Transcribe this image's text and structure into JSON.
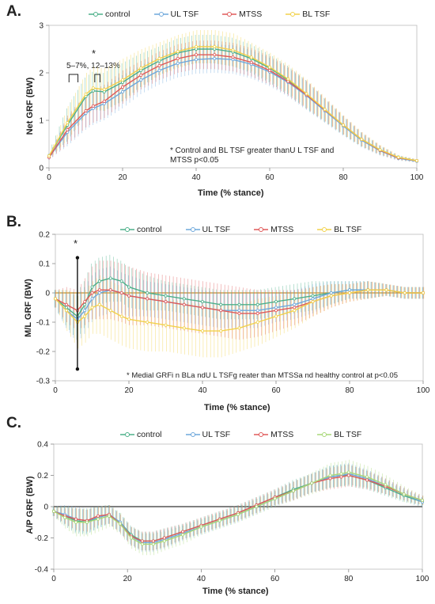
{
  "panels": [
    {
      "letter": "A.",
      "legend": [
        {
          "name": "control",
          "color": "#4db08a"
        },
        {
          "name": "UL TSF",
          "color": "#6fa8dc"
        },
        {
          "name": "MTSS",
          "color": "#e05a5a"
        },
        {
          "name": "BL TSF",
          "color": "#f2d24b"
        }
      ],
      "ylabel": "Net GRF (BW)",
      "xlabel": "Time (% stance)",
      "annotation": "* Control and BL TSF greater thanU L TSF and MTSS p<0.05",
      "marker_star": "*",
      "marker_label": "5–7%, 12–13%"
    },
    {
      "letter": "B.",
      "legend": [
        {
          "name": "control",
          "color": "#4db08a"
        },
        {
          "name": "UL TSF",
          "color": "#6fa8dc"
        },
        {
          "name": "MTSS",
          "color": "#e05a5a"
        },
        {
          "name": "BL TSF",
          "color": "#f2d24b"
        }
      ],
      "ylabel": "M/L GRF (BW)",
      "xlabel": "Time (% stance)",
      "annotation": "* Medial GRFi n BLa ndU L TSFg reater than MTSSa nd healthy control at p<0.05",
      "marker_star": "*"
    },
    {
      "letter": "C.",
      "legend": [
        {
          "name": "control",
          "color": "#4db08a"
        },
        {
          "name": "UL TSF",
          "color": "#6fa8dc"
        },
        {
          "name": "MTSS",
          "color": "#e05a5a"
        },
        {
          "name": "BL TSF",
          "color": "#a8d878"
        }
      ],
      "ylabel": "A/P GRF (BW)",
      "xlabel": "Time (% stance)"
    }
  ],
  "chart_data": [
    {
      "type": "line",
      "title": "",
      "xlabel": "Time (% stance)",
      "ylabel": "Net GRF (BW)",
      "xlim": [
        0,
        100
      ],
      "ylim": [
        0,
        3
      ],
      "xticks": [
        0,
        20,
        40,
        60,
        80,
        100
      ],
      "yticks": [
        0,
        1,
        2,
        3
      ],
      "x": [
        0,
        5,
        10,
        12,
        15,
        20,
        25,
        30,
        35,
        40,
        45,
        50,
        55,
        60,
        65,
        70,
        75,
        80,
        85,
        90,
        95,
        100
      ],
      "series": [
        {
          "name": "control",
          "color": "#4db08a",
          "values": [
            0.25,
            0.9,
            1.5,
            1.62,
            1.6,
            1.8,
            2.05,
            2.25,
            2.42,
            2.5,
            2.5,
            2.44,
            2.3,
            2.1,
            1.85,
            1.55,
            1.22,
            0.9,
            0.6,
            0.38,
            0.22,
            0.15
          ],
          "sd": [
            0.05,
            0.35,
            0.4,
            0.4,
            0.4,
            0.4,
            0.35,
            0.3,
            0.3,
            0.3,
            0.3,
            0.3,
            0.3,
            0.3,
            0.3,
            0.3,
            0.25,
            0.2,
            0.15,
            0.1,
            0.05,
            0.03
          ]
        },
        {
          "name": "UL TSF",
          "color": "#6fa8dc",
          "values": [
            0.22,
            0.75,
            1.15,
            1.25,
            1.35,
            1.6,
            1.85,
            2.05,
            2.2,
            2.28,
            2.3,
            2.28,
            2.18,
            2.02,
            1.8,
            1.52,
            1.2,
            0.88,
            0.58,
            0.36,
            0.2,
            0.14
          ],
          "sd": [
            0.05,
            0.3,
            0.35,
            0.35,
            0.35,
            0.35,
            0.3,
            0.3,
            0.3,
            0.3,
            0.3,
            0.3,
            0.3,
            0.3,
            0.3,
            0.3,
            0.25,
            0.2,
            0.15,
            0.1,
            0.05,
            0.03
          ]
        },
        {
          "name": "MTSS",
          "color": "#e05a5a",
          "values": [
            0.22,
            0.8,
            1.2,
            1.3,
            1.4,
            1.7,
            1.95,
            2.15,
            2.3,
            2.38,
            2.38,
            2.33,
            2.22,
            2.05,
            1.82,
            1.54,
            1.22,
            0.9,
            0.6,
            0.37,
            0.21,
            0.15
          ],
          "sd": [
            0.05,
            0.3,
            0.35,
            0.35,
            0.35,
            0.35,
            0.3,
            0.3,
            0.3,
            0.3,
            0.3,
            0.3,
            0.3,
            0.3,
            0.3,
            0.3,
            0.25,
            0.2,
            0.15,
            0.1,
            0.05,
            0.03
          ]
        },
        {
          "name": "BL TSF",
          "color": "#f2d24b",
          "values": [
            0.25,
            0.95,
            1.55,
            1.68,
            1.65,
            1.85,
            2.1,
            2.3,
            2.45,
            2.55,
            2.55,
            2.48,
            2.33,
            2.12,
            1.87,
            1.56,
            1.23,
            0.9,
            0.6,
            0.38,
            0.22,
            0.15
          ],
          "sd": [
            0.05,
            0.35,
            0.45,
            0.45,
            0.45,
            0.45,
            0.4,
            0.35,
            0.35,
            0.35,
            0.35,
            0.35,
            0.3,
            0.3,
            0.3,
            0.3,
            0.25,
            0.2,
            0.15,
            0.1,
            0.05,
            0.03
          ]
        }
      ]
    },
    {
      "type": "line",
      "title": "",
      "xlabel": "Time (% stance)",
      "ylabel": "M/L GRF (BW)",
      "xlim": [
        0,
        100
      ],
      "ylim": [
        -0.3,
        0.2
      ],
      "xticks": [
        0,
        20,
        40,
        60,
        80,
        100
      ],
      "yticks": [
        -0.3,
        -0.2,
        -0.1,
        0,
        0.1,
        0.2
      ],
      "annotation_bar": {
        "x": 6,
        "y_low": -0.26,
        "y_high": 0.12
      },
      "x": [
        0,
        3,
        6,
        8,
        10,
        12,
        15,
        18,
        20,
        25,
        30,
        35,
        40,
        45,
        50,
        55,
        60,
        65,
        70,
        75,
        80,
        85,
        90,
        95,
        100
      ],
      "series": [
        {
          "name": "control",
          "color": "#4db08a",
          "values": [
            -0.02,
            -0.05,
            -0.08,
            -0.04,
            0.02,
            0.04,
            0.05,
            0.04,
            0.02,
            0.0,
            -0.01,
            -0.02,
            -0.03,
            -0.04,
            -0.04,
            -0.04,
            -0.03,
            -0.02,
            -0.01,
            0.0,
            0.01,
            0.01,
            0.01,
            0.0,
            0.0
          ],
          "sd": [
            0.03,
            0.06,
            0.08,
            0.08,
            0.08,
            0.08,
            0.08,
            0.07,
            0.07,
            0.06,
            0.05,
            0.05,
            0.05,
            0.05,
            0.05,
            0.05,
            0.05,
            0.05,
            0.05,
            0.04,
            0.03,
            0.03,
            0.02,
            0.02,
            0.02
          ]
        },
        {
          "name": "UL TSF",
          "color": "#6fa8dc",
          "values": [
            -0.02,
            -0.06,
            -0.09,
            -0.06,
            -0.02,
            0.0,
            0.01,
            0.0,
            -0.01,
            -0.02,
            -0.03,
            -0.04,
            -0.05,
            -0.06,
            -0.06,
            -0.06,
            -0.05,
            -0.04,
            -0.02,
            0.0,
            0.01,
            0.01,
            0.01,
            0.0,
            0.0
          ],
          "sd": [
            0.03,
            0.06,
            0.08,
            0.08,
            0.08,
            0.08,
            0.08,
            0.07,
            0.07,
            0.06,
            0.06,
            0.06,
            0.06,
            0.06,
            0.06,
            0.06,
            0.05,
            0.05,
            0.05,
            0.04,
            0.03,
            0.03,
            0.02,
            0.02,
            0.02
          ]
        },
        {
          "name": "MTSS",
          "color": "#e05a5a",
          "values": [
            -0.02,
            -0.04,
            -0.06,
            -0.03,
            0.0,
            0.01,
            0.01,
            0.0,
            -0.01,
            -0.02,
            -0.03,
            -0.04,
            -0.05,
            -0.06,
            -0.07,
            -0.07,
            -0.06,
            -0.05,
            -0.03,
            -0.01,
            0.0,
            0.01,
            0.01,
            0.0,
            0.0
          ],
          "sd": [
            0.03,
            0.06,
            0.07,
            0.08,
            0.09,
            0.1,
            0.1,
            0.1,
            0.1,
            0.09,
            0.09,
            0.09,
            0.09,
            0.09,
            0.09,
            0.08,
            0.07,
            0.06,
            0.05,
            0.04,
            0.03,
            0.03,
            0.02,
            0.02,
            0.02
          ]
        },
        {
          "name": "BL TSF",
          "color": "#f2d24b",
          "values": [
            -0.02,
            -0.06,
            -0.1,
            -0.08,
            -0.05,
            -0.04,
            -0.06,
            -0.08,
            -0.09,
            -0.1,
            -0.11,
            -0.12,
            -0.13,
            -0.13,
            -0.12,
            -0.1,
            -0.08,
            -0.06,
            -0.03,
            -0.01,
            0.0,
            0.01,
            0.01,
            0.0,
            0.0
          ],
          "sd": [
            0.03,
            0.07,
            0.09,
            0.09,
            0.09,
            0.1,
            0.1,
            0.1,
            0.1,
            0.1,
            0.09,
            0.09,
            0.09,
            0.09,
            0.08,
            0.08,
            0.07,
            0.06,
            0.05,
            0.04,
            0.03,
            0.03,
            0.02,
            0.02,
            0.02
          ]
        }
      ]
    },
    {
      "type": "line",
      "title": "",
      "xlabel": "Time (% stance)",
      "ylabel": "A/P GRF (BW)",
      "xlim": [
        0,
        100
      ],
      "ylim": [
        -0.4,
        0.4
      ],
      "xticks": [
        0,
        20,
        40,
        60,
        80,
        100
      ],
      "yticks": [
        -0.4,
        -0.2,
        0,
        0.2,
        0.4
      ],
      "x": [
        0,
        3,
        6,
        9,
        12,
        15,
        18,
        21,
        24,
        27,
        30,
        35,
        40,
        45,
        50,
        55,
        60,
        65,
        70,
        75,
        78,
        80,
        85,
        90,
        95,
        100
      ],
      "series": [
        {
          "name": "control",
          "color": "#4db08a",
          "values": [
            -0.03,
            -0.06,
            -0.09,
            -0.1,
            -0.07,
            -0.05,
            -0.1,
            -0.18,
            -0.22,
            -0.22,
            -0.2,
            -0.16,
            -0.12,
            -0.08,
            -0.04,
            0.01,
            0.06,
            0.11,
            0.15,
            0.19,
            0.2,
            0.2,
            0.17,
            0.12,
            0.07,
            0.03
          ],
          "sd": [
            0.03,
            0.06,
            0.08,
            0.08,
            0.07,
            0.06,
            0.06,
            0.06,
            0.06,
            0.06,
            0.06,
            0.05,
            0.05,
            0.05,
            0.05,
            0.05,
            0.05,
            0.06,
            0.06,
            0.07,
            0.07,
            0.07,
            0.06,
            0.05,
            0.04,
            0.03
          ]
        },
        {
          "name": "UL TSF",
          "color": "#6fa8dc",
          "values": [
            -0.03,
            -0.05,
            -0.08,
            -0.09,
            -0.07,
            -0.05,
            -0.1,
            -0.19,
            -0.23,
            -0.23,
            -0.21,
            -0.17,
            -0.13,
            -0.09,
            -0.05,
            0.0,
            0.05,
            0.1,
            0.15,
            0.19,
            0.2,
            0.21,
            0.18,
            0.13,
            0.08,
            0.03
          ],
          "sd": [
            0.03,
            0.06,
            0.08,
            0.08,
            0.07,
            0.06,
            0.06,
            0.06,
            0.06,
            0.06,
            0.06,
            0.05,
            0.05,
            0.05,
            0.05,
            0.05,
            0.05,
            0.06,
            0.06,
            0.07,
            0.07,
            0.07,
            0.06,
            0.05,
            0.04,
            0.03
          ]
        },
        {
          "name": "MTSS",
          "color": "#e05a5a",
          "values": [
            -0.03,
            -0.06,
            -0.08,
            -0.09,
            -0.06,
            -0.05,
            -0.11,
            -0.19,
            -0.22,
            -0.22,
            -0.2,
            -0.16,
            -0.12,
            -0.08,
            -0.04,
            0.01,
            0.06,
            0.1,
            0.15,
            0.18,
            0.19,
            0.2,
            0.17,
            0.13,
            0.08,
            0.04
          ],
          "sd": [
            0.03,
            0.05,
            0.07,
            0.07,
            0.06,
            0.06,
            0.06,
            0.06,
            0.06,
            0.06,
            0.06,
            0.05,
            0.05,
            0.05,
            0.05,
            0.05,
            0.05,
            0.06,
            0.06,
            0.07,
            0.07,
            0.07,
            0.06,
            0.05,
            0.04,
            0.03
          ]
        },
        {
          "name": "BL TSF",
          "color": "#a8d878",
          "values": [
            -0.03,
            -0.07,
            -0.1,
            -0.1,
            -0.08,
            -0.06,
            -0.11,
            -0.2,
            -0.24,
            -0.24,
            -0.22,
            -0.18,
            -0.13,
            -0.09,
            -0.05,
            0.0,
            0.05,
            0.1,
            0.15,
            0.2,
            0.21,
            0.22,
            0.19,
            0.14,
            0.08,
            0.04
          ],
          "sd": [
            0.03,
            0.07,
            0.09,
            0.09,
            0.08,
            0.07,
            0.07,
            0.07,
            0.07,
            0.07,
            0.06,
            0.06,
            0.05,
            0.05,
            0.05,
            0.05,
            0.05,
            0.06,
            0.07,
            0.08,
            0.08,
            0.08,
            0.07,
            0.06,
            0.05,
            0.03
          ]
        }
      ]
    }
  ]
}
